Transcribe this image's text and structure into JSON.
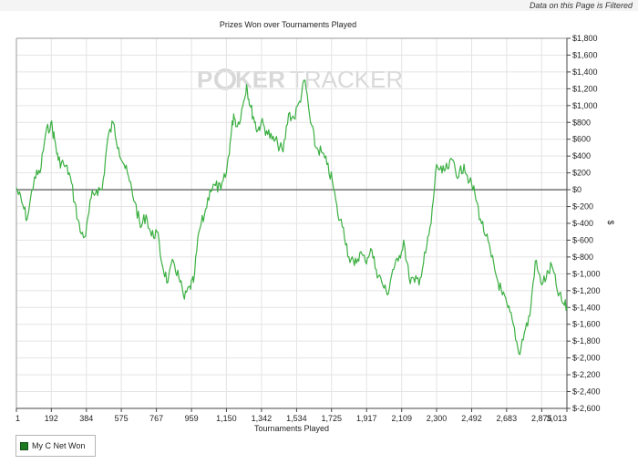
{
  "header": {
    "filter_note": "Data on this Page is Filtered"
  },
  "watermark": {
    "brand_part1": "P",
    "brand_part2": "KER",
    "brand_part3": "TRACKER"
  },
  "colors": {
    "line": "#3cb043",
    "zero_line": "#555555",
    "grid": "#e4e4e4",
    "legend_swatch": "#1f7a1f",
    "watermark": "#d8d8d8"
  },
  "chart_data": {
    "type": "line",
    "title": "Prizes Won over Tournaments Played",
    "xlabel": "Tournaments Played",
    "ylabel": "$",
    "xlim": [
      1,
      3013
    ],
    "ylim": [
      -2600,
      1800
    ],
    "x_ticks": [
      1,
      192,
      384,
      575,
      767,
      959,
      1150,
      1342,
      1534,
      1725,
      1917,
      2109,
      2300,
      2492,
      2683,
      2875,
      3013
    ],
    "x_tick_labels": [
      "1",
      "192",
      "384",
      "575",
      "767",
      "959",
      "1,150",
      "1,342",
      "1,534",
      "1,725",
      "1,917",
      "2,109",
      "2,300",
      "2,492",
      "2,683",
      "2,875",
      "3,013"
    ],
    "y_ticks": [
      1800,
      1600,
      1400,
      1200,
      1000,
      800,
      600,
      400,
      200,
      0,
      -200,
      -400,
      -600,
      -800,
      -1000,
      -1200,
      -1400,
      -1600,
      -1800,
      -2000,
      -2200,
      -2400,
      -2600
    ],
    "y_tick_labels": [
      "$1,800",
      "$1,600",
      "$1,400",
      "$1,200",
      "$1,000",
      "$800",
      "$600",
      "$400",
      "$200",
      "$0",
      "$-200",
      "$-400",
      "$-600",
      "$-800",
      "$-1,000",
      "$-1,200",
      "$-1,400",
      "$-1,600",
      "$-1,800",
      "$-2,000",
      "$-2,200",
      "$-2,400",
      "$-2,600"
    ],
    "grid": true,
    "legend_position": "bottom-left",
    "series": [
      {
        "name": "My C Net Won",
        "x": [
          1,
          30,
          60,
          100,
          130,
          160,
          190,
          210,
          230,
          260,
          290,
          320,
          350,
          380,
          410,
          440,
          470,
          500,
          530,
          560,
          590,
          620,
          650,
          680,
          710,
          740,
          770,
          800,
          830,
          860,
          890,
          920,
          950,
          970,
          1000,
          1030,
          1060,
          1090,
          1120,
          1150,
          1170,
          1190,
          1210,
          1240,
          1260,
          1280,
          1300,
          1320,
          1340,
          1370,
          1400,
          1430,
          1460,
          1490,
          1520,
          1550,
          1580,
          1610,
          1640,
          1670,
          1700,
          1730,
          1760,
          1790,
          1820,
          1850,
          1880,
          1910,
          1940,
          1970,
          2000,
          2030,
          2060,
          2090,
          2120,
          2150,
          2180,
          2210,
          2240,
          2270,
          2300,
          2330,
          2360,
          2390,
          2420,
          2450,
          2480,
          2510,
          2540,
          2570,
          2600,
          2630,
          2660,
          2690,
          2720,
          2750,
          2780,
          2810,
          2840,
          2870,
          2900,
          2930,
          2960,
          2990,
          3013
        ],
        "values": [
          20,
          -150,
          -350,
          150,
          200,
          650,
          800,
          600,
          350,
          300,
          200,
          -150,
          -500,
          -550,
          -100,
          0,
          0,
          600,
          800,
          500,
          300,
          100,
          -150,
          -450,
          -300,
          -550,
          -500,
          -900,
          -1100,
          -850,
          -1050,
          -1300,
          -1150,
          -1100,
          -500,
          -300,
          0,
          50,
          0,
          200,
          550,
          900,
          750,
          1000,
          1250,
          1000,
          850,
          700,
          800,
          700,
          600,
          550,
          450,
          900,
          850,
          1050,
          1300,
          800,
          500,
          450,
          300,
          100,
          -300,
          -450,
          -800,
          -900,
          -750,
          -850,
          -700,
          -950,
          -1100,
          -1250,
          -950,
          -850,
          -600,
          -1050,
          -1100,
          -1050,
          -750,
          -400,
          300,
          200,
          250,
          350,
          150,
          300,
          100,
          -50,
          -350,
          -550,
          -800,
          -1050,
          -1250,
          -1400,
          -1600,
          -1950,
          -1700,
          -1500,
          -850,
          -1100,
          -1050,
          -900,
          -1200,
          -1350,
          -1400
        ]
      }
    ]
  }
}
